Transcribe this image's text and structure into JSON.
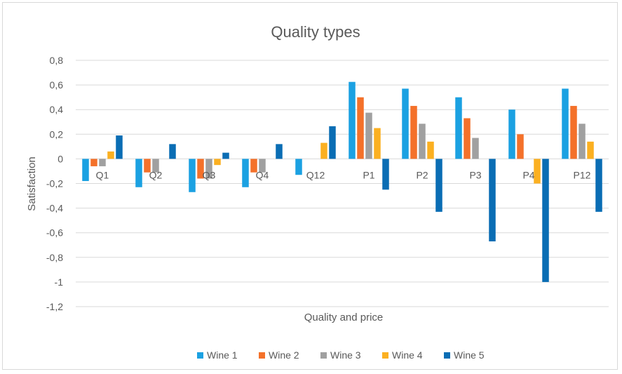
{
  "chart_data": {
    "type": "bar",
    "title": "Quality types",
    "xlabel": "Quality and price",
    "ylabel": "Satisfaction",
    "categories": [
      "Q1",
      "Q2",
      "Q3",
      "Q4",
      "Q12",
      "P1",
      "P2",
      "P3",
      "P4",
      "P12"
    ],
    "ylim": [
      -1.2,
      0.8
    ],
    "yticks": [
      0.8,
      0.6,
      0.4,
      0.2,
      0,
      -0.2,
      -0.4,
      -0.6,
      -0.8,
      -1,
      -1.2
    ],
    "ytick_labels": [
      "0,8",
      "0,6",
      "0,4",
      "0,2",
      "0",
      "-0,2",
      "-0,4",
      "-0,6",
      "-0,8",
      "-1",
      "-1,2"
    ],
    "grid": true,
    "legend_position": "bottom",
    "series": [
      {
        "name": "Wine 1",
        "color": "#1ba1e2",
        "values": [
          -0.18,
          -0.23,
          -0.27,
          -0.23,
          -0.13,
          0.625,
          0.57,
          0.5,
          0.4,
          0.57
        ]
      },
      {
        "name": "Wine 2",
        "color": "#f4712a",
        "values": [
          -0.06,
          -0.11,
          -0.16,
          -0.11,
          0.0,
          0.5,
          0.43,
          0.33,
          0.2,
          0.43
        ]
      },
      {
        "name": "Wine 3",
        "color": "#a0a0a0",
        "values": [
          -0.06,
          -0.11,
          -0.16,
          -0.11,
          0.0,
          0.375,
          0.285,
          0.17,
          0.0,
          0.285
        ]
      },
      {
        "name": "Wine 4",
        "color": "#fbb021",
        "values": [
          0.06,
          0.0,
          -0.05,
          0.0,
          0.13,
          0.25,
          0.14,
          0.0,
          -0.2,
          0.14
        ]
      },
      {
        "name": "Wine 5",
        "color": "#0a6db4",
        "values": [
          0.19,
          0.12,
          0.05,
          0.12,
          0.265,
          -0.25,
          -0.43,
          -0.67,
          -1.0,
          -0.43
        ]
      }
    ]
  }
}
